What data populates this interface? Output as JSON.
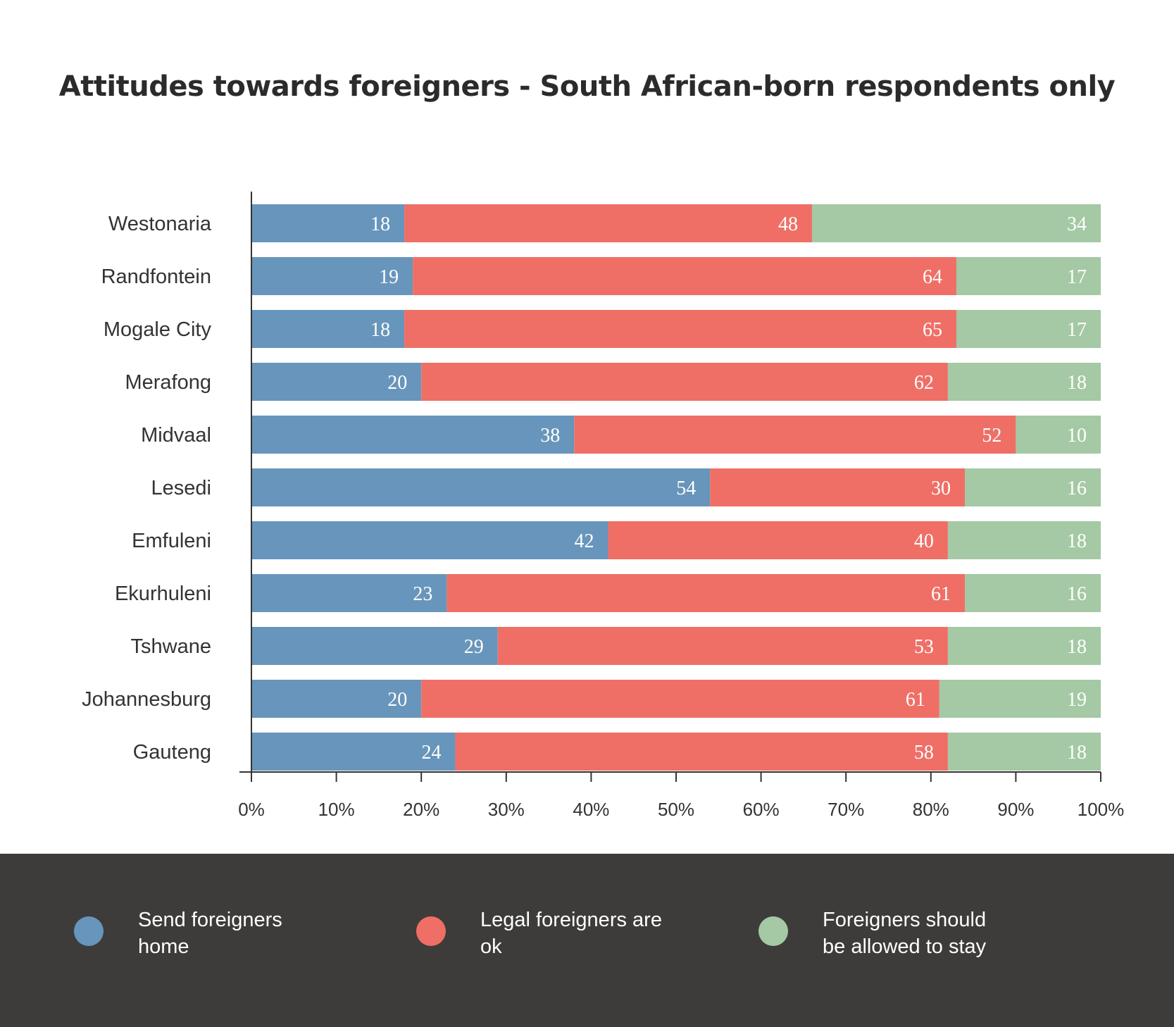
{
  "chart_data": {
    "type": "bar",
    "orientation": "horizontal",
    "stacked": true,
    "title": "Attitudes towards foreigners - South African-born respondents only",
    "categories": [
      "Westonaria",
      "Randfontein",
      "Mogale City",
      "Merafong",
      "Midvaal",
      "Lesedi",
      "Emfuleni",
      "Ekurhuleni",
      "Tshwane",
      "Johannesburg",
      "Gauteng"
    ],
    "series": [
      {
        "name": "Send foreigners home",
        "color": "#6895bb",
        "values": [
          18,
          19,
          18,
          20,
          38,
          54,
          42,
          23,
          29,
          20,
          24
        ]
      },
      {
        "name": "Legal foreigners are ok",
        "color": "#ef6f66",
        "values": [
          48,
          64,
          65,
          62,
          52,
          30,
          40,
          61,
          53,
          61,
          58
        ]
      },
      {
        "name": "Foreigners should\nbe allowed to stay",
        "color": "#a4c9a4",
        "values": [
          34,
          17,
          17,
          18,
          10,
          16,
          18,
          16,
          18,
          19,
          18
        ]
      }
    ],
    "xlim": [
      0,
      100
    ],
    "xticks": [
      0,
      10,
      20,
      30,
      40,
      50,
      60,
      70,
      80,
      90,
      100
    ],
    "tick_labels": [
      "0%",
      "10%",
      "20%",
      "30%",
      "40%",
      "50%",
      "60%",
      "70%",
      "80%",
      "90%",
      "100%"
    ],
    "grid": false,
    "legend_position": "bottom"
  }
}
